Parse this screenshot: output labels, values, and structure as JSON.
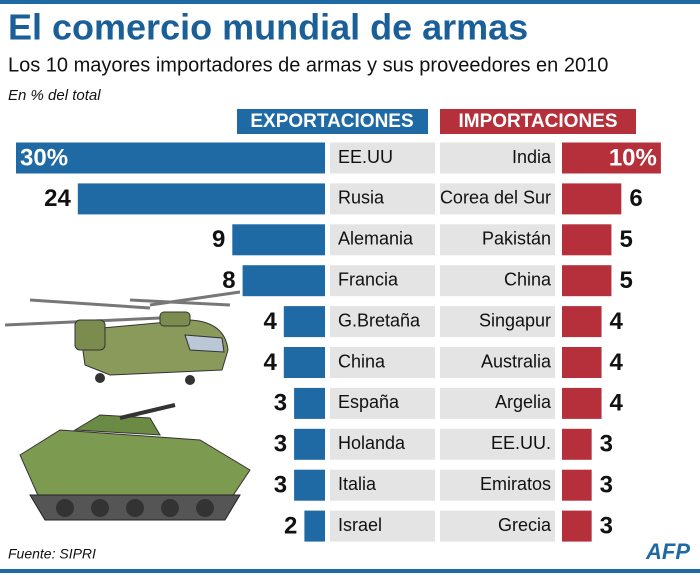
{
  "title": "El comercio mundial de armas",
  "subtitle": "Los 10 mayores importadores de armas y sus proveedores en 2010",
  "note": "En % del total",
  "source": "Fuente: SIPRI",
  "credit": "AFP",
  "chart_data": [
    {
      "type": "bar",
      "title": "EXPORTACIONES",
      "color": "#1f6aa5",
      "categories": [
        "EE.UU",
        "Rusia",
        "Alemania",
        "Francia",
        "G.Bretaña",
        "China",
        "España",
        "Holanda",
        "Italia",
        "Israel"
      ],
      "values": [
        30,
        24,
        9,
        8,
        4,
        4,
        3,
        3,
        3,
        2
      ],
      "value_labels": [
        "30%",
        "24",
        "9",
        "8",
        "4",
        "4",
        "3",
        "3",
        "3",
        "2"
      ]
    },
    {
      "type": "bar",
      "title": "IMPORTACIONES",
      "color": "#b5303a",
      "categories": [
        "India",
        "Corea del Sur",
        "Pakistán",
        "China",
        "Singapur",
        "Australia",
        "Argelia",
        "EE.UU.",
        "Emiratos",
        "Grecia"
      ],
      "values": [
        10,
        6,
        5,
        5,
        4,
        4,
        4,
        3,
        3,
        3
      ],
      "value_labels": [
        "10%",
        "6",
        "5",
        "5",
        "4",
        "4",
        "4",
        "3",
        "3",
        "3"
      ]
    }
  ]
}
